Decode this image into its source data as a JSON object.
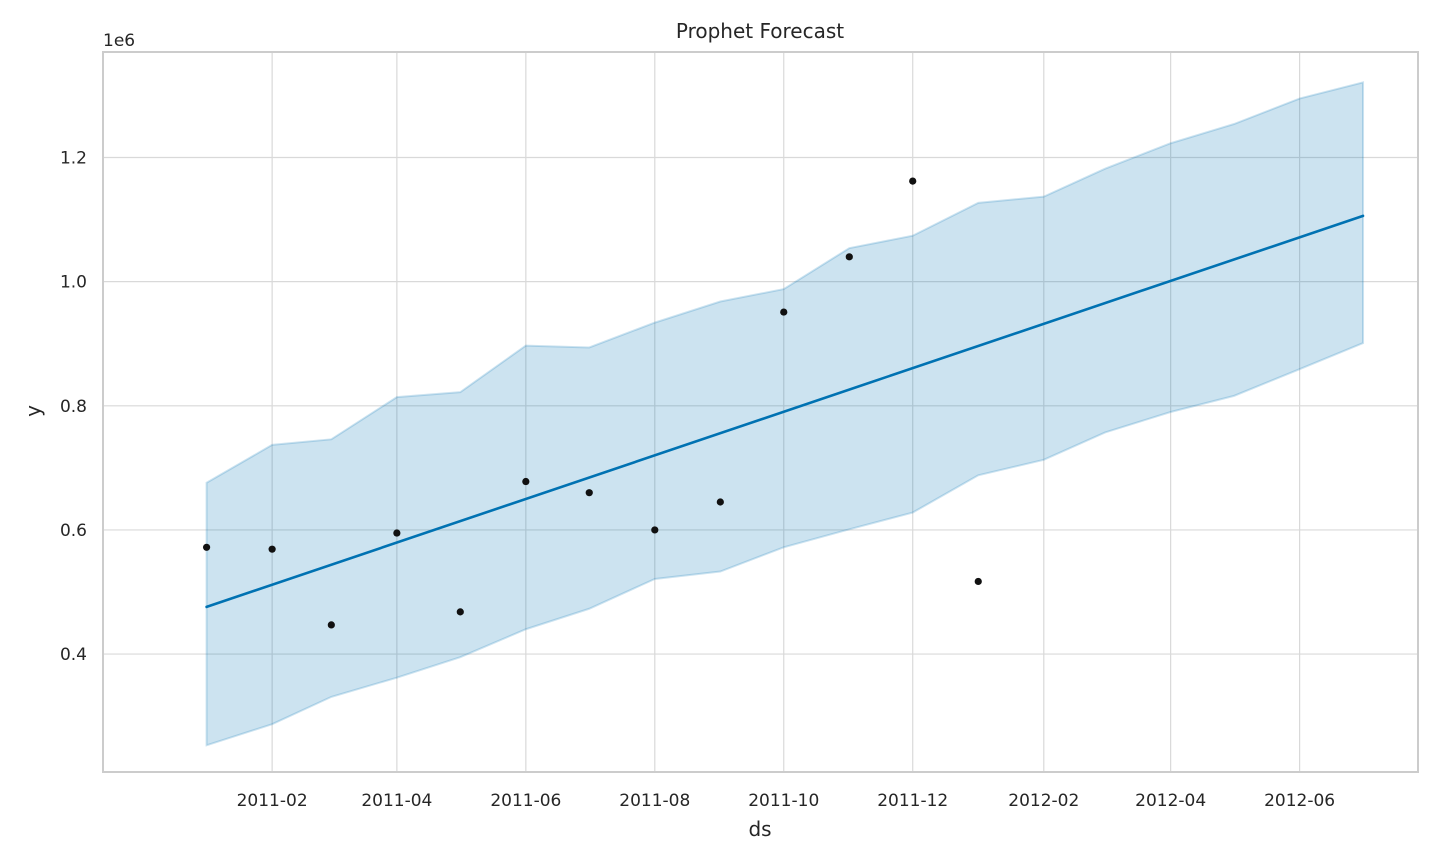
{
  "chart_data": {
    "type": "line",
    "title": "Prophet Forecast",
    "xlabel": "ds",
    "ylabel": "y",
    "y_offset_label": "1e6",
    "y_scale": 1000000,
    "x_range": [
      "2010-11-13",
      "2012-07-27"
    ],
    "ylim": [
      210000,
      1370000
    ],
    "x_ticks": [
      "2011-02-01",
      "2011-04-01",
      "2011-06-01",
      "2011-08-01",
      "2011-10-01",
      "2011-12-01",
      "2012-02-01",
      "2012-04-01",
      "2012-06-01"
    ],
    "x_tick_labels": [
      "2011-02",
      "2011-04",
      "2011-06",
      "2011-08",
      "2011-10",
      "2011-12",
      "2012-02",
      "2012-04",
      "2012-06"
    ],
    "y_ticks": [
      400000,
      600000,
      800000,
      1000000,
      1200000
    ],
    "y_tick_labels": [
      "0.4",
      "0.6",
      "0.8",
      "1.0",
      "1.2"
    ],
    "grid": true,
    "forecast_dates": [
      "2011-01-01",
      "2011-02-01",
      "2011-03-01",
      "2011-04-01",
      "2011-05-01",
      "2011-06-01",
      "2011-07-01",
      "2011-08-01",
      "2011-09-01",
      "2011-10-01",
      "2011-11-01",
      "2011-12-01",
      "2012-01-01",
      "2012-02-01",
      "2012-03-01",
      "2012-04-01",
      "2012-05-01",
      "2012-06-01",
      "2012-07-01"
    ],
    "series": [
      {
        "type": "band",
        "upper": [
          676000,
          737000,
          746000,
          814000,
          822000,
          897000,
          894000,
          934000,
          968000,
          988000,
          1054000,
          1074000,
          1127000,
          1137000,
          1182000,
          1223000,
          1254000,
          1295000,
          1321000
        ],
        "lower": [
          253000,
          287000,
          331000,
          362000,
          395000,
          440000,
          473000,
          521000,
          533000,
          572000,
          601000,
          628000,
          688000,
          713000,
          757000,
          790000,
          816000,
          859000,
          901000
        ],
        "color": "#0072b2"
      },
      {
        "type": "line",
        "from": [
          "2011-01-01",
          476000
        ],
        "to": [
          "2012-07-01",
          1106000
        ],
        "color": "#0072b2"
      },
      {
        "type": "scatter",
        "points": [
          [
            "2011-01-01",
            572000
          ],
          [
            "2011-02-01",
            569000
          ],
          [
            "2011-03-01",
            447000
          ],
          [
            "2011-04-01",
            595000
          ],
          [
            "2011-05-01",
            468000
          ],
          [
            "2011-06-01",
            678000
          ],
          [
            "2011-07-01",
            660000
          ],
          [
            "2011-08-01",
            600000
          ],
          [
            "2011-09-01",
            645000
          ],
          [
            "2011-10-01",
            951000
          ],
          [
            "2011-11-01",
            1040000
          ],
          [
            "2011-12-01",
            1162000
          ],
          [
            "2012-01-01",
            517000
          ]
        ],
        "color": "#111111"
      }
    ]
  }
}
